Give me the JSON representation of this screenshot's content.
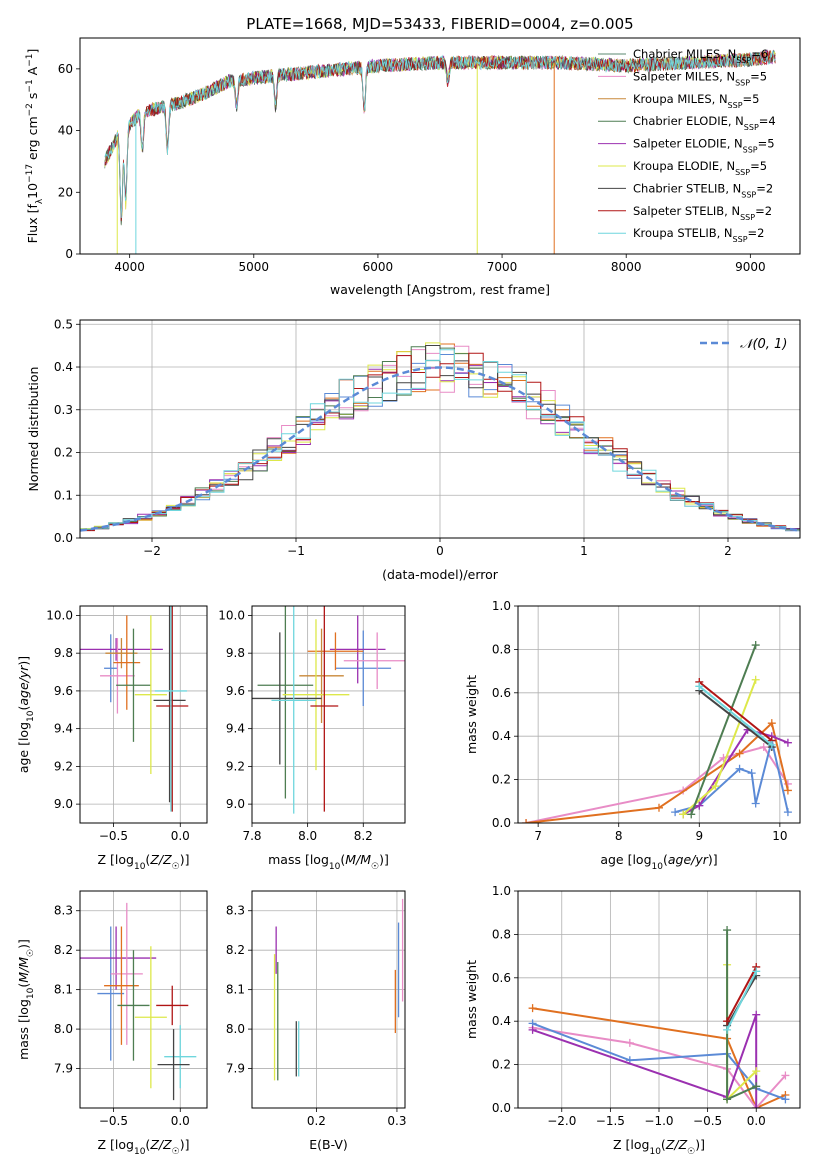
{
  "figure": {
    "title": "PLATE=1668, MJD=53433, FIBERID=0004, z=0.005"
  },
  "models": [
    {
      "name": "Chabrier MILES",
      "nssp": 6,
      "color": "#5b8a72"
    },
    {
      "name": "Salpeter MILES",
      "nssp": 5,
      "color": "#e88cc6"
    },
    {
      "name": "Kroupa MILES",
      "nssp": 5,
      "color": "#c8883a"
    },
    {
      "name": "Chabrier ELODIE",
      "nssp": 4,
      "color": "#4e7d52"
    },
    {
      "name": "Salpeter ELODIE",
      "nssp": 5,
      "color": "#9b30b0"
    },
    {
      "name": "Kroupa ELODIE",
      "nssp": 5,
      "color": "#dde84a"
    },
    {
      "name": "Chabrier STELIB",
      "nssp": 2,
      "color": "#444444"
    },
    {
      "name": "Salpeter STELIB",
      "nssp": 2,
      "color": "#b01515"
    },
    {
      "name": "Kroupa STELIB",
      "nssp": 2,
      "color": "#6fd6dd"
    }
  ],
  "chart_data": [
    {
      "type": "line",
      "id": "spectrum",
      "xlabel": "wavelength [Angstrom, rest frame]",
      "ylabel": "Flux [f_λ 10^-17 erg cm^-2 s^-1 A^-1]",
      "xlim": [
        3600,
        9400
      ],
      "ylim": [
        0,
        70
      ],
      "xticks": [
        4000,
        5000,
        6000,
        7000,
        8000,
        9000
      ],
      "yticks": [
        0,
        20,
        40,
        60
      ],
      "grid": false,
      "legend": "right",
      "x_range": [
        3800,
        9200
      ],
      "continuum_points": [
        [
          3800,
          30
        ],
        [
          3900,
          38
        ],
        [
          4000,
          42
        ],
        [
          4100,
          46
        ],
        [
          4200,
          47
        ],
        [
          4400,
          49
        ],
        [
          4600,
          52
        ],
        [
          4800,
          56
        ],
        [
          5000,
          57
        ],
        [
          5200,
          58
        ],
        [
          5500,
          59
        ],
        [
          6000,
          61
        ],
        [
          6500,
          62
        ],
        [
          7000,
          62
        ],
        [
          7500,
          62
        ],
        [
          8000,
          61
        ],
        [
          8500,
          62
        ],
        [
          9000,
          63
        ],
        [
          9200,
          64
        ]
      ],
      "absorption_lines": [
        {
          "x": 3933,
          "depth": 28
        },
        {
          "x": 3968,
          "depth": 24
        },
        {
          "x": 4102,
          "depth": 12
        },
        {
          "x": 4304,
          "depth": 14
        },
        {
          "x": 4861,
          "depth": 8
        },
        {
          "x": 5175,
          "depth": 10
        },
        {
          "x": 5890,
          "depth": 14
        },
        {
          "x": 6563,
          "depth": 6
        }
      ]
    },
    {
      "type": "line",
      "id": "residuals",
      "xlabel": "(data-model)/error",
      "ylabel": "Normed distribution",
      "xlim": [
        -2.5,
        2.5
      ],
      "ylim": [
        0,
        0.51
      ],
      "xticks": [
        -2,
        -1,
        0,
        1,
        2
      ],
      "yticks": [
        0.0,
        0.1,
        0.2,
        0.3,
        0.4,
        0.5
      ],
      "grid": true,
      "legend_label": "𝒩(0, 1)",
      "legend": "top-right",
      "gaussian": {
        "mu": 0,
        "sigma": 1,
        "color": "#5b8ad6"
      }
    },
    {
      "type": "scatter",
      "id": "age_vs_Z",
      "xlabel": "Z [log10(Z/Z☉)]",
      "ylabel": "age [log10(age/yr)]",
      "xlim": [
        -0.75,
        0.2
      ],
      "ylim": [
        8.9,
        10.05
      ],
      "xticks": [
        -0.5,
        0.0
      ],
      "yticks": [
        9.0,
        9.2,
        9.4,
        9.6,
        9.8,
        10.0
      ],
      "grid": true,
      "points": [
        {
          "x": -0.52,
          "y": 9.72,
          "xerr": 0.05,
          "yerr": 0.18,
          "c": "#5b8ad6"
        },
        {
          "x": -0.48,
          "y": 9.82,
          "xerr": 0.35,
          "yerr": 0.06,
          "c": "#9b30b0"
        },
        {
          "x": -0.47,
          "y": 9.68,
          "xerr": 0.13,
          "yerr": 0.2,
          "c": "#e88cc6"
        },
        {
          "x": -0.44,
          "y": 9.8,
          "xerr": 0.12,
          "yerr": 0.08,
          "c": "#c8883a"
        },
        {
          "x": -0.4,
          "y": 9.75,
          "xerr": 0.1,
          "yerr": 0.25,
          "c": "#e07020"
        },
        {
          "x": -0.35,
          "y": 9.63,
          "xerr": 0.13,
          "yerr": 0.3,
          "c": "#4e7d52"
        },
        {
          "x": -0.22,
          "y": 9.58,
          "xerr": 0.12,
          "yerr": 0.42,
          "c": "#dde84a"
        },
        {
          "x": -0.08,
          "y": 9.55,
          "xerr": 0.12,
          "yerr": 0.54,
          "c": "#444444"
        },
        {
          "x": -0.06,
          "y": 9.52,
          "xerr": 0.12,
          "yerr": 0.56,
          "c": "#b01515"
        },
        {
          "x": -0.07,
          "y": 9.6,
          "xerr": 0.12,
          "yerr": 0.64,
          "c": "#6fd6dd"
        }
      ]
    },
    {
      "type": "scatter",
      "id": "age_vs_mass",
      "xlabel": "mass [log10(M/M☉)]",
      "xlim": [
        7.8,
        8.35
      ],
      "ylim": [
        8.9,
        10.05
      ],
      "xticks": [
        7.8,
        8.0,
        8.2
      ],
      "yticks": [
        9.0,
        9.2,
        9.4,
        9.6,
        9.8,
        10.0
      ],
      "grid": true,
      "points": [
        {
          "x": 8.2,
          "y": 9.72,
          "xerr": 0.1,
          "yerr": 0.2,
          "c": "#5b8ad6"
        },
        {
          "x": 8.18,
          "y": 9.82,
          "xerr": 0.1,
          "yerr": 0.18,
          "c": "#9b30b0"
        },
        {
          "x": 8.25,
          "y": 9.76,
          "xerr": 0.12,
          "yerr": 0.15,
          "c": "#e88cc6"
        },
        {
          "x": 8.1,
          "y": 9.81,
          "xerr": 0.1,
          "yerr": 0.1,
          "c": "#e07020"
        },
        {
          "x": 8.05,
          "y": 9.68,
          "xerr": 0.08,
          "yerr": 0.25,
          "c": "#c8883a"
        },
        {
          "x": 7.92,
          "y": 9.63,
          "xerr": 0.1,
          "yerr": 0.6,
          "c": "#4e7d52"
        },
        {
          "x": 8.03,
          "y": 9.58,
          "xerr": 0.12,
          "yerr": 0.4,
          "c": "#dde84a"
        },
        {
          "x": 7.9,
          "y": 9.56,
          "xerr": 0.15,
          "yerr": 0.35,
          "c": "#444444"
        },
        {
          "x": 8.06,
          "y": 9.52,
          "xerr": 0.05,
          "yerr": 0.56,
          "c": "#b01515"
        },
        {
          "x": 7.95,
          "y": 9.55,
          "xerr": 0.08,
          "yerr": 0.6,
          "c": "#6fd6dd"
        }
      ]
    },
    {
      "type": "line",
      "id": "weight_vs_age",
      "xlabel": "age [log10(age/yr)]",
      "ylabel": "mass weight",
      "xlim": [
        6.75,
        10.25
      ],
      "ylim": [
        0,
        1
      ],
      "xticks": [
        7,
        8,
        9,
        10
      ],
      "yticks": [
        0.0,
        0.2,
        0.4,
        0.6,
        0.8,
        1.0
      ],
      "grid": true,
      "series": [
        {
          "c": "#e88cc6",
          "x": [
            6.85,
            8.8,
            9.3,
            9.8,
            10.1
          ],
          "y": [
            0.0,
            0.15,
            0.3,
            0.35,
            0.18
          ]
        },
        {
          "c": "#e07020",
          "x": [
            6.85,
            8.5,
            9.5,
            9.9,
            10.1
          ],
          "y": [
            0.0,
            0.07,
            0.32,
            0.46,
            0.15
          ]
        },
        {
          "c": "#5b8ad6",
          "x": [
            8.7,
            9.0,
            9.5,
            9.65,
            9.7,
            9.9,
            10.1
          ],
          "y": [
            0.05,
            0.08,
            0.25,
            0.23,
            0.09,
            0.38,
            0.05
          ]
        },
        {
          "c": "#9b30b0",
          "x": [
            8.8,
            9.0,
            9.6,
            9.9,
            10.1
          ],
          "y": [
            0.04,
            0.08,
            0.43,
            0.4,
            0.37
          ]
        },
        {
          "c": "#dde84a",
          "x": [
            8.8,
            9.2,
            9.7
          ],
          "y": [
            0.04,
            0.17,
            0.66
          ]
        },
        {
          "c": "#4e7d52",
          "x": [
            8.9,
            9.7
          ],
          "y": [
            0.04,
            0.82
          ]
        },
        {
          "c": "#444444",
          "x": [
            9.0,
            9.9
          ],
          "y": [
            0.61,
            0.35
          ]
        },
        {
          "c": "#b01515",
          "x": [
            9.0,
            9.9
          ],
          "y": [
            0.65,
            0.38
          ]
        },
        {
          "c": "#6fd6dd",
          "x": [
            9.0,
            9.9
          ],
          "y": [
            0.63,
            0.36
          ]
        }
      ]
    },
    {
      "type": "scatter",
      "id": "mass_vs_Z",
      "xlabel": "Z [log10(Z/Z☉)]",
      "ylabel": "mass [log10(M/M☉)]",
      "xlim": [
        -0.75,
        0.2
      ],
      "ylim": [
        7.8,
        8.35
      ],
      "xticks": [
        -0.5,
        0.0
      ],
      "yticks": [
        7.9,
        8.0,
        8.1,
        8.2,
        8.3
      ],
      "grid": true,
      "points": [
        {
          "x": -0.52,
          "y": 8.09,
          "xerr": 0.1,
          "yerr": 0.17,
          "c": "#5b8ad6"
        },
        {
          "x": -0.48,
          "y": 8.18,
          "xerr": 0.3,
          "yerr": 0.08,
          "c": "#9b30b0"
        },
        {
          "x": -0.4,
          "y": 8.14,
          "xerr": 0.12,
          "yerr": 0.18,
          "c": "#e88cc6"
        },
        {
          "x": -0.44,
          "y": 8.11,
          "xerr": 0.13,
          "yerr": 0.15,
          "c": "#e07020"
        },
        {
          "x": -0.35,
          "y": 8.06,
          "xerr": 0.12,
          "yerr": 0.14,
          "c": "#4e7d52"
        },
        {
          "x": -0.22,
          "y": 8.03,
          "xerr": 0.12,
          "yerr": 0.18,
          "c": "#dde84a"
        },
        {
          "x": -0.06,
          "y": 8.06,
          "xerr": 0.12,
          "yerr": 0.05,
          "c": "#b01515"
        },
        {
          "x": 0.0,
          "y": 7.93,
          "xerr": 0.12,
          "yerr": 0.08,
          "c": "#6fd6dd"
        },
        {
          "x": -0.05,
          "y": 7.91,
          "xerr": 0.12,
          "yerr": 0.09,
          "c": "#444444"
        }
      ]
    },
    {
      "type": "scatter",
      "id": "mass_vs_EBV",
      "xlabel": "E(B-V)",
      "xlim": [
        0.12,
        0.31
      ],
      "ylim": [
        7.8,
        8.35
      ],
      "xticks": [
        0.2,
        0.3
      ],
      "yticks": [
        7.9,
        8.0,
        8.1,
        8.2,
        8.3
      ],
      "grid": true,
      "points": [
        {
          "x": 0.15,
          "y": 8.2,
          "yerr": 0.06,
          "c": "#9b30b0"
        },
        {
          "x": 0.148,
          "y": 8.03,
          "yerr": 0.16,
          "c": "#dde84a"
        },
        {
          "x": 0.152,
          "y": 8.02,
          "yerr": 0.15,
          "c": "#4e7d52"
        },
        {
          "x": 0.175,
          "y": 7.95,
          "yerr": 0.07,
          "c": "#444444"
        },
        {
          "x": 0.178,
          "y": 7.95,
          "yerr": 0.07,
          "c": "#6fd6dd"
        },
        {
          "x": 0.298,
          "y": 8.07,
          "yerr": 0.08,
          "c": "#e07020"
        },
        {
          "x": 0.302,
          "y": 8.15,
          "yerr": 0.12,
          "c": "#5b8ad6"
        },
        {
          "x": 0.307,
          "y": 8.2,
          "yerr": 0.13,
          "c": "#e88cc6"
        }
      ]
    },
    {
      "type": "line",
      "id": "weight_vs_Z",
      "xlabel": "Z [log10(Z/Z☉)]",
      "ylabel": "mass weight",
      "xlim": [
        -2.45,
        0.45
      ],
      "ylim": [
        0,
        1
      ],
      "xticks": [
        -2.0,
        -1.5,
        -1.0,
        -0.5,
        0.0
      ],
      "yticks": [
        0.0,
        0.2,
        0.4,
        0.6,
        0.8,
        1.0
      ],
      "grid": true,
      "series": [
        {
          "c": "#e07020",
          "x": [
            -2.3,
            -0.3,
            0.0,
            0.3
          ],
          "y": [
            0.46,
            0.32,
            0.0,
            0.06
          ]
        },
        {
          "c": "#e88cc6",
          "x": [
            -2.3,
            -1.3,
            -0.3,
            0.0,
            0.3
          ],
          "y": [
            0.37,
            0.3,
            0.18,
            0.0,
            0.15
          ]
        },
        {
          "c": "#5b8ad6",
          "x": [
            -2.3,
            -1.3,
            -0.3,
            0.0,
            0.3
          ],
          "y": [
            0.39,
            0.22,
            0.25,
            0.09,
            0.04
          ]
        },
        {
          "c": "#9b30b0",
          "x": [
            -2.3,
            -0.3,
            0.0,
            0.0
          ],
          "y": [
            0.36,
            0.05,
            0.43,
            0.0
          ]
        },
        {
          "c": "#dde84a",
          "x": [
            -0.3,
            -0.3,
            0.0
          ],
          "y": [
            0.66,
            0.04,
            0.17
          ]
        },
        {
          "c": "#4e7d52",
          "x": [
            -0.3,
            -0.3,
            0.0
          ],
          "y": [
            0.82,
            0.04,
            0.1
          ]
        },
        {
          "c": "#444444",
          "x": [
            -0.3,
            0.0
          ],
          "y": [
            0.38,
            0.61
          ]
        },
        {
          "c": "#b01515",
          "x": [
            -0.3,
            0.0
          ],
          "y": [
            0.4,
            0.65
          ]
        },
        {
          "c": "#6fd6dd",
          "x": [
            -0.3,
            0.0
          ],
          "y": [
            0.36,
            0.63
          ]
        }
      ]
    }
  ]
}
